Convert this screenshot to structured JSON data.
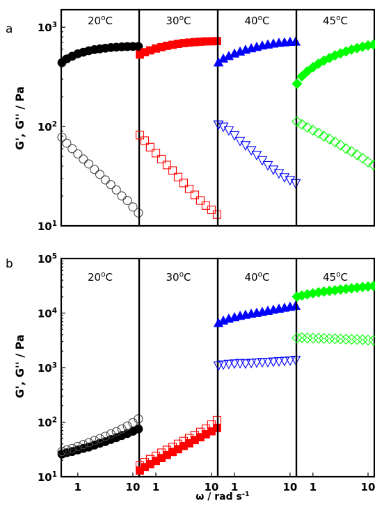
{
  "chart_data": [
    {
      "type": "scatter",
      "panel_label": "a",
      "ylabel": "G', G'' / Pa",
      "yscale": "log",
      "ylim": [
        10,
        1500
      ],
      "y_ticks": [
        {
          "value": 10,
          "base": "10",
          "exp": "1"
        },
        {
          "value": 100,
          "base": "10",
          "exp": "2"
        },
        {
          "value": 1000,
          "base": "10",
          "exp": "3"
        }
      ],
      "xscale": "log",
      "xlim": [
        0.5,
        13
      ],
      "x_ticks": [],
      "xlabel": "",
      "subplots": [
        {
          "temp": {
            "num": "20",
            "deg": "o",
            "unit": "C"
          },
          "series": [
            {
              "marker": "circle",
              "filled": true,
              "color": "#000000",
              "x": [
                0.5,
                0.63,
                0.79,
                1.0,
                1.26,
                1.58,
                2.0,
                2.51,
                3.16,
                3.98,
                5.01,
                6.31,
                7.94,
                10.0,
                12.6
              ],
              "y": [
                440,
                480,
                510,
                540,
                560,
                580,
                595,
                605,
                615,
                625,
                630,
                635,
                638,
                640,
                640
              ]
            },
            {
              "marker": "circle",
              "filled": false,
              "color": "#444444",
              "x": [
                0.5,
                0.63,
                0.79,
                1.0,
                1.26,
                1.58,
                2.0,
                2.51,
                3.16,
                3.98,
                5.01,
                6.31,
                7.94,
                10.0,
                12.6
              ],
              "y": [
                78,
                68,
                60,
                53,
                47,
                42,
                37,
                33,
                29,
                26,
                23,
                20,
                18,
                15.5,
                13.5
              ]
            }
          ]
        },
        {
          "temp": {
            "num": "30",
            "deg": "o",
            "unit": "C"
          },
          "series": [
            {
              "marker": "square",
              "filled": true,
              "color": "#ff0000",
              "x": [
                0.5,
                0.63,
                0.79,
                1.0,
                1.26,
                1.58,
                2.0,
                2.51,
                3.16,
                3.98,
                5.01,
                6.31,
                7.94,
                10.0,
                12.6
              ],
              "y": [
                530,
                560,
                585,
                610,
                630,
                650,
                665,
                680,
                692,
                700,
                708,
                715,
                720,
                722,
                725
              ]
            },
            {
              "marker": "square",
              "filled": false,
              "color": "#ff0000",
              "x": [
                0.5,
                0.63,
                0.79,
                1.0,
                1.26,
                1.58,
                2.0,
                2.51,
                3.16,
                3.98,
                5.01,
                6.31,
                7.94,
                10.0,
                12.6
              ],
              "y": [
                82,
                72,
                62,
                54,
                47,
                41,
                36,
                31,
                27,
                23.5,
                20.5,
                18,
                16,
                14.5,
                13
              ]
            }
          ]
        },
        {
          "temp": {
            "num": "40",
            "deg": "o",
            "unit": "C"
          },
          "series": [
            {
              "marker": "triangle-up",
              "filled": true,
              "color": "#0000ff",
              "x": [
                0.5,
                0.63,
                0.79,
                1.0,
                1.26,
                1.58,
                2.0,
                2.51,
                3.16,
                3.98,
                5.01,
                6.31,
                7.94,
                10.0,
                12.6
              ],
              "y": [
                440,
                480,
                510,
                540,
                565,
                590,
                610,
                630,
                650,
                665,
                680,
                692,
                700,
                708,
                712
              ]
            },
            {
              "marker": "triangle-down",
              "filled": false,
              "color": "#0000ff",
              "x": [
                0.5,
                0.63,
                0.79,
                1.0,
                1.26,
                1.58,
                2.0,
                2.51,
                3.16,
                3.98,
                5.01,
                6.31,
                7.94,
                10.0,
                12.6
              ],
              "y": [
                105,
                100,
                92,
                82,
                72,
                65,
                58,
                52,
                46,
                41,
                37,
                34,
                31,
                29,
                27
              ]
            }
          ]
        },
        {
          "temp": {
            "num": "45",
            "deg": "o",
            "unit": "C"
          },
          "series": [
            {
              "marker": "diamond",
              "filled": true,
              "color": "#00ff00",
              "x": [
                0.5,
                0.63,
                0.79,
                1.0,
                1.26,
                1.58,
                2.0,
                2.51,
                3.16,
                3.98,
                5.01,
                6.31,
                7.94,
                10.0,
                12.6
              ],
              "y": [
                270,
                320,
                360,
                395,
                430,
                460,
                490,
                520,
                545,
                570,
                595,
                615,
                635,
                655,
                670
              ]
            },
            {
              "marker": "diamond",
              "filled": false,
              "color": "#00ff00",
              "x": [
                0.5,
                0.63,
                0.79,
                1.0,
                1.26,
                1.58,
                2.0,
                2.51,
                3.16,
                3.98,
                5.01,
                6.31,
                7.94,
                10.0,
                12.6
              ],
              "y": [
                112,
                105,
                98,
                92,
                86,
                80,
                75,
                70,
                65,
                60,
                56,
                52,
                48,
                44,
                41
              ]
            }
          ]
        }
      ]
    },
    {
      "type": "scatter",
      "panel_label": "b",
      "ylabel": "G', G'' / Pa",
      "yscale": "log",
      "ylim": [
        10,
        100000
      ],
      "y_ticks": [
        {
          "value": 10,
          "base": "10",
          "exp": "1"
        },
        {
          "value": 100,
          "base": "10",
          "exp": "2"
        },
        {
          "value": 1000,
          "base": "10",
          "exp": "3"
        },
        {
          "value": 10000,
          "base": "10",
          "exp": "4"
        },
        {
          "value": 100000,
          "base": "10",
          "exp": "5"
        }
      ],
      "xscale": "log",
      "xlim": [
        0.5,
        13
      ],
      "x_ticks": [
        {
          "value": 1,
          "label": "1"
        },
        {
          "value": 10,
          "label": "10"
        }
      ],
      "xlabel": "ω  / rad s-1",
      "xlabel_parts": {
        "symbol": "ω",
        "text": "  / rad s",
        "sup": "-1"
      },
      "subplots": [
        {
          "temp": {
            "num": "20",
            "deg": "o",
            "unit": "C"
          },
          "series": [
            {
              "marker": "circle",
              "filled": true,
              "color": "#000000",
              "x": [
                0.5,
                0.63,
                0.79,
                1.0,
                1.26,
                1.58,
                2.0,
                2.51,
                3.16,
                3.98,
                5.01,
                6.31,
                7.94,
                10.0,
                12.6
              ],
              "y": [
                26,
                27.5,
                29,
                31,
                33,
                35,
                38,
                41,
                44,
                48,
                52,
                57,
                62,
                68,
                75
              ]
            },
            {
              "marker": "circle",
              "filled": false,
              "color": "#444444",
              "x": [
                0.5,
                0.63,
                0.79,
                1.0,
                1.26,
                1.58,
                2.0,
                2.51,
                3.16,
                3.98,
                5.01,
                6.31,
                7.94,
                10.0,
                12.6
              ],
              "y": [
                29,
                31,
                33,
                36,
                39,
                42,
                46,
                50,
                55,
                61,
                67,
                75,
                85,
                98,
                115
              ]
            }
          ]
        },
        {
          "temp": {
            "num": "30",
            "deg": "o",
            "unit": "C"
          },
          "series": [
            {
              "marker": "square",
              "filled": true,
              "color": "#ff0000",
              "x": [
                0.5,
                0.63,
                0.79,
                1.0,
                1.26,
                1.58,
                2.0,
                2.51,
                3.16,
                3.98,
                5.01,
                6.31,
                7.94,
                10.0,
                12.6
              ],
              "y": [
                13,
                15,
                17,
                19.5,
                22,
                25,
                28.5,
                32,
                36.5,
                41,
                47,
                53,
                60,
                68,
                78
              ]
            },
            {
              "marker": "square",
              "filled": false,
              "color": "#ff0000",
              "x": [
                0.5,
                0.63,
                0.79,
                1.0,
                1.26,
                1.58,
                2.0,
                2.51,
                3.16,
                3.98,
                5.01,
                6.31,
                7.94,
                10.0,
                12.6
              ],
              "y": [
                16,
                18.5,
                21,
                24,
                27.5,
                31,
                35,
                40,
                45,
                51,
                58,
                66,
                76,
                90,
                108
              ]
            }
          ]
        },
        {
          "temp": {
            "num": "40",
            "deg": "o",
            "unit": "C"
          },
          "series": [
            {
              "marker": "triangle-up",
              "filled": true,
              "color": "#0000ff",
              "x": [
                0.5,
                0.63,
                0.79,
                1.0,
                1.26,
                1.58,
                2.0,
                2.51,
                3.16,
                3.98,
                5.01,
                6.31,
                7.94,
                10.0,
                12.6
              ],
              "y": [
                6500,
                7200,
                7800,
                8300,
                8800,
                9200,
                9600,
                10000,
                10400,
                10900,
                11400,
                11900,
                12400,
                12900,
                13400
              ]
            },
            {
              "marker": "triangle-down",
              "filled": false,
              "color": "#0000ff",
              "x": [
                0.5,
                0.63,
                0.79,
                1.0,
                1.26,
                1.58,
                2.0,
                2.51,
                3.16,
                3.98,
                5.01,
                6.31,
                7.94,
                10.0,
                12.6
              ],
              "y": [
                1100,
                1150,
                1180,
                1200,
                1220,
                1200,
                1230,
                1250,
                1270,
                1280,
                1300,
                1320,
                1340,
                1360,
                1400
              ]
            }
          ]
        },
        {
          "temp": {
            "num": "45",
            "deg": "o",
            "unit": "C"
          },
          "series": [
            {
              "marker": "diamond",
              "filled": true,
              "color": "#00ff00",
              "x": [
                0.5,
                0.63,
                0.79,
                1.0,
                1.26,
                1.58,
                2.0,
                2.51,
                3.16,
                3.98,
                5.01,
                6.31,
                7.94,
                10.0,
                12.6
              ],
              "y": [
                20000,
                21000,
                22000,
                23000,
                24000,
                24800,
                25500,
                26200,
                27000,
                27700,
                28400,
                29200,
                30000,
                30700,
                31500
              ]
            },
            {
              "marker": "diamond",
              "filled": false,
              "color": "#00ff00",
              "x": [
                0.5,
                0.63,
                0.79,
                1.0,
                1.26,
                1.58,
                2.0,
                2.51,
                3.16,
                3.98,
                5.01,
                6.31,
                7.94,
                10.0,
                12.6
              ],
              "y": [
                3500,
                3550,
                3500,
                3480,
                3450,
                3430,
                3400,
                3380,
                3350,
                3320,
                3300,
                3280,
                3250,
                3200,
                3150
              ]
            }
          ]
        }
      ]
    }
  ]
}
